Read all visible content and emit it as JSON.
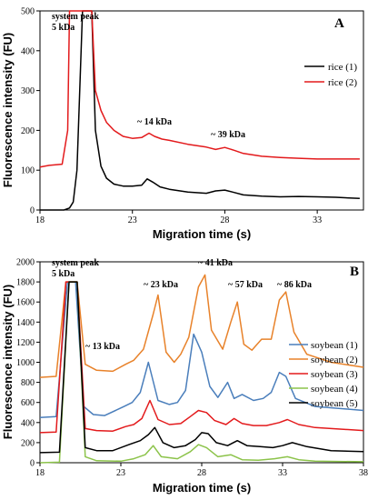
{
  "chart_data": [
    {
      "type": "line",
      "panel": "A",
      "xlabel": "Migration time (s)",
      "ylabel": "Fluorescence intensity (FU)",
      "xlim": [
        18,
        35.5
      ],
      "ylim": [
        0,
        500
      ],
      "xticks": [
        18,
        23,
        28,
        33
      ],
      "yticks": [
        0,
        100,
        200,
        300,
        400,
        500
      ],
      "legend_position": "right",
      "annotations": [
        {
          "text": "system peak",
          "x": 19.0,
          "y": 485
        },
        {
          "text": "5 kDa",
          "x": 19.0,
          "y": 458
        },
        {
          "text": "~ 14 kDa",
          "x": 23.2,
          "y": 207
        },
        {
          "text": "~ 39 kDa",
          "x": 27.4,
          "y": 172
        }
      ],
      "series": [
        {
          "name": "rice (1)",
          "color": "#000000",
          "x": [
            18,
            19.3,
            19.6,
            19.8,
            20.0,
            20.3,
            20.5,
            20.8,
            21.0,
            21.3,
            21.6,
            22.0,
            22.5,
            23.0,
            23.5,
            23.8,
            24.1,
            24.5,
            25,
            26,
            27,
            27.5,
            28,
            28.5,
            29,
            30,
            31,
            32,
            33,
            34,
            35.3
          ],
          "y": [
            0,
            0,
            5,
            20,
            100,
            500,
            500,
            500,
            200,
            110,
            80,
            65,
            60,
            60,
            62,
            78,
            70,
            58,
            52,
            45,
            42,
            48,
            50,
            44,
            38,
            35,
            33,
            34,
            33,
            32,
            29
          ]
        },
        {
          "name": "rice (2)",
          "color": "#e31a1c",
          "x": [
            18,
            18.5,
            19.2,
            19.5,
            19.6,
            19.8,
            20.0,
            20.3,
            20.8,
            21.0,
            21.3,
            21.6,
            22.0,
            22.5,
            23.0,
            23.5,
            23.9,
            24.2,
            24.6,
            25,
            26,
            27,
            27.5,
            28,
            28.5,
            29,
            30,
            31,
            32,
            33,
            34,
            35.3
          ],
          "y": [
            108,
            112,
            115,
            200,
            500,
            500,
            500,
            500,
            500,
            300,
            250,
            220,
            200,
            185,
            180,
            182,
            193,
            185,
            178,
            175,
            165,
            158,
            152,
            157,
            150,
            142,
            135,
            132,
            130,
            128,
            128,
            128
          ]
        }
      ]
    },
    {
      "type": "line",
      "panel": "B",
      "xlabel": "Migration time (s)",
      "ylabel": "Fluorescence intensity (FU)",
      "xlim": [
        18,
        38
      ],
      "ylim": [
        0,
        2000
      ],
      "xticks": [
        18,
        23,
        28,
        33,
        38
      ],
      "yticks": [
        0,
        200,
        400,
        600,
        800,
        1000,
        1200,
        1400,
        1600,
        1800,
        2000
      ],
      "legend_position": "right",
      "annotations": [
        {
          "text": "system peak",
          "x": 19.0,
          "y": 1960
        },
        {
          "text": "5 kDa",
          "x": 19.0,
          "y": 1850
        },
        {
          "text": "~ 13 kDa",
          "x": 22.2,
          "y": 1310
        },
        {
          "text": "~ 23 kDa",
          "x": 24.0,
          "y": 1840
        },
        {
          "text": "~ 41 kDa",
          "x": 27.4,
          "y": 1980
        },
        {
          "text": "~ 57 kDa",
          "x": 30.0,
          "y": 1840
        },
        {
          "text": "~ 86 kDa",
          "x": 32.6,
          "y": 1840
        }
      ],
      "series": [
        {
          "name": "soybean (1)",
          "color": "#4a7ebb",
          "x": [
            18,
            19.0,
            19.7,
            20.2,
            20.7,
            21.3,
            22,
            23.2,
            23.7,
            24.2,
            24.7,
            25.3,
            26,
            26.5,
            27,
            27.5,
            28,
            28.5,
            29,
            29.6,
            30.0,
            30.5,
            31.2,
            31.8,
            32.3,
            32.8,
            33.2,
            33.8,
            35,
            38
          ],
          "y": [
            450,
            460,
            1800,
            1800,
            560,
            480,
            470,
            560,
            600,
            700,
            1000,
            620,
            580,
            600,
            720,
            1280,
            1100,
            760,
            650,
            800,
            640,
            680,
            620,
            640,
            700,
            900,
            860,
            640,
            560,
            520
          ]
        },
        {
          "name": "soybean (2)",
          "color": "#e8822a",
          "x": [
            18,
            19.0,
            19.6,
            20.3,
            20.8,
            21.5,
            22.5,
            23.3,
            23.8,
            24.4,
            25.0,
            25.3,
            25.8,
            26.3,
            26.7,
            27.2,
            27.8,
            28.2,
            28.6,
            29.3,
            29.8,
            30.2,
            30.6,
            31.1,
            31.7,
            32.3,
            32.8,
            33.2,
            33.7,
            34.5,
            36,
            38
          ],
          "y": [
            850,
            860,
            1800,
            1800,
            980,
            920,
            910,
            980,
            1020,
            1130,
            1480,
            1670,
            1100,
            1000,
            1080,
            1250,
            1750,
            1870,
            1320,
            1130,
            1400,
            1600,
            1180,
            1120,
            1230,
            1230,
            1620,
            1700,
            1300,
            1080,
            1000,
            950
          ]
        },
        {
          "name": "soybean (3)",
          "color": "#e31a1c",
          "x": [
            18,
            19.0,
            19.6,
            20.3,
            20.8,
            21.5,
            22.5,
            23.3,
            23.8,
            24.3,
            24.8,
            25.3,
            26,
            26.7,
            27.3,
            27.8,
            28.3,
            28.8,
            29.5,
            30.0,
            30.5,
            31.2,
            32,
            32.8,
            33.3,
            34,
            35,
            38
          ],
          "y": [
            300,
            305,
            1800,
            1800,
            340,
            320,
            315,
            360,
            380,
            440,
            620,
            430,
            380,
            390,
            460,
            520,
            500,
            420,
            380,
            440,
            390,
            370,
            370,
            400,
            430,
            380,
            350,
            320
          ]
        },
        {
          "name": "soybean (4)",
          "color": "#8cc34a",
          "x": [
            18,
            19.2,
            19.8,
            20.3,
            20.8,
            21.5,
            23,
            23.8,
            24.5,
            25.0,
            25.5,
            26.5,
            27.3,
            27.8,
            28.3,
            29,
            29.8,
            30.5,
            31.5,
            32.5,
            33.3,
            34,
            35,
            38
          ],
          "y": [
            0,
            5,
            1800,
            1800,
            60,
            20,
            15,
            40,
            80,
            170,
            60,
            40,
            110,
            180,
            150,
            60,
            80,
            30,
            25,
            40,
            60,
            30,
            15,
            10
          ]
        },
        {
          "name": "soybean (5)",
          "color": "#000000",
          "x": [
            18,
            19.2,
            19.8,
            20.3,
            20.8,
            21.5,
            22.5,
            23.5,
            24.2,
            24.7,
            25.1,
            25.6,
            26.3,
            27,
            27.6,
            28.0,
            28.4,
            28.9,
            29.6,
            30.2,
            30.8,
            31.6,
            32.4,
            33.0,
            33.6,
            34.5,
            36,
            38
          ],
          "y": [
            100,
            105,
            1800,
            1800,
            150,
            120,
            120,
            180,
            220,
            280,
            350,
            200,
            150,
            170,
            230,
            300,
            290,
            200,
            170,
            220,
            170,
            160,
            150,
            170,
            200,
            160,
            120,
            110
          ]
        }
      ]
    }
  ],
  "panels": [
    {
      "letter": "A",
      "ylabel": "Fluorescence intensity (FU)",
      "xlabel": "Migration time (s)",
      "xtick_labels": [
        "18",
        "23",
        "28",
        "33"
      ],
      "ytick_labels": [
        "0",
        "100",
        "200",
        "300",
        "400",
        "500"
      ],
      "annotations": [
        "system peak",
        "5 kDa",
        "~ 14 kDa",
        "~ 39 kDa"
      ],
      "legend": [
        "rice (1)",
        "rice (2)"
      ]
    },
    {
      "letter": "B",
      "ylabel": "Fluorescence intensity (FU)",
      "xlabel": "Migration time (s)",
      "xtick_labels": [
        "18",
        "23",
        "28",
        "33",
        "38"
      ],
      "ytick_labels": [
        "0",
        "200",
        "400",
        "600",
        "800",
        "1000",
        "1200",
        "1400",
        "1600",
        "1800",
        "2000"
      ],
      "annotations": [
        "system peak",
        "5 kDa",
        "~ 13 kDa",
        "~ 23 kDa",
        "~ 41 kDa",
        "~ 57 kDa",
        "~ 86 kDa"
      ],
      "legend": [
        "soybean (1)",
        "soybean (2)",
        "soybean (3)",
        "soybean (4)",
        "soybean (5)"
      ]
    }
  ]
}
